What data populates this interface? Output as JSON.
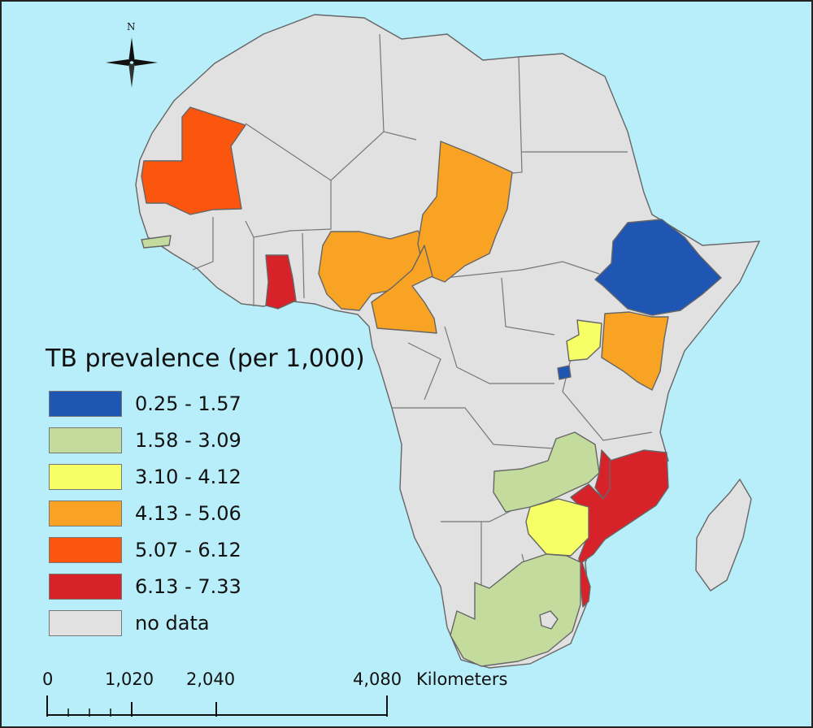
{
  "map": {
    "ocean_color": "#b8eef9",
    "land_color": "#e1e1e1",
    "border_color": "#666666"
  },
  "north_arrow": {
    "label": "N"
  },
  "legend": {
    "title": "TB prevalence (per 1,000)",
    "classes": [
      {
        "label": "0.25 - 1.57",
        "color": "#1f55b3"
      },
      {
        "label": "1.58 - 3.09",
        "color": "#c3dc9e"
      },
      {
        "label": "3.10 - 4.12",
        "color": "#f6ff66"
      },
      {
        "label": "4.13 - 5.06",
        "color": "#f8a323"
      },
      {
        "label": "5.07 - 6.12",
        "color": "#fb550e"
      },
      {
        "label": "6.13 - 7.33",
        "color": "#d7222a"
      },
      {
        "label": "no data",
        "color": "#e1e1e1"
      }
    ]
  },
  "countries": [
    {
      "name": "Ethiopia",
      "class": "0.25 - 1.57"
    },
    {
      "name": "Rwanda",
      "class": "0.25 - 1.57"
    },
    {
      "name": "Gambia",
      "class": "1.58 - 3.09"
    },
    {
      "name": "Zambia",
      "class": "1.58 - 3.09"
    },
    {
      "name": "South Africa",
      "class": "1.58 - 3.09"
    },
    {
      "name": "Uganda",
      "class": "3.10 - 4.12"
    },
    {
      "name": "Zimbabwe",
      "class": "3.10 - 4.12"
    },
    {
      "name": "Nigeria",
      "class": "4.13 - 5.06"
    },
    {
      "name": "Chad",
      "class": "4.13 - 5.06"
    },
    {
      "name": "Cameroon",
      "class": "4.13 - 5.06"
    },
    {
      "name": "Kenya",
      "class": "4.13 - 5.06"
    },
    {
      "name": "Mauritania",
      "class": "5.07 - 6.12"
    },
    {
      "name": "Ghana",
      "class": "6.13 - 7.33"
    },
    {
      "name": "Mozambique",
      "class": "6.13 - 7.33"
    },
    {
      "name": "Malawi",
      "class": "6.13 - 7.33"
    }
  ],
  "scale_bar": {
    "ticks": [
      "0",
      "1,020",
      "2,040",
      "4,080"
    ],
    "unit": "Kilometers"
  }
}
